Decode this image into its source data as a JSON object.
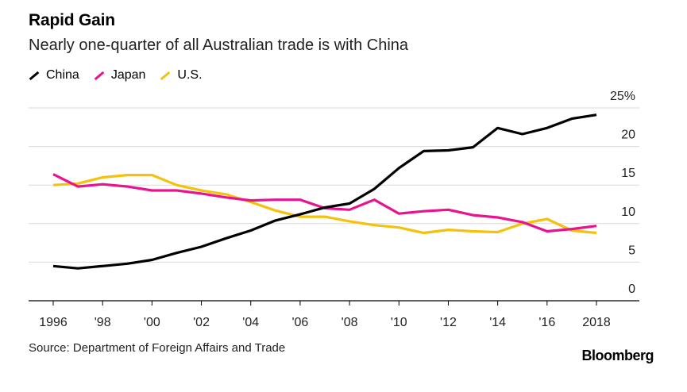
{
  "header": {
    "title": "Rapid Gain",
    "subtitle": "Nearly one-quarter of all Australian trade is with China"
  },
  "footer": {
    "source": "Source: Department of Foreign Affairs and Trade",
    "brand": "Bloomberg"
  },
  "chart_data": {
    "type": "line",
    "title": "Rapid Gain",
    "subtitle": "Nearly one-quarter of all Australian trade is with China",
    "x": [
      1996,
      1997,
      1998,
      1999,
      2000,
      2001,
      2002,
      2003,
      2004,
      2005,
      2006,
      2007,
      2008,
      2009,
      2010,
      2011,
      2012,
      2013,
      2014,
      2015,
      2016,
      2017,
      2018
    ],
    "x_tick_values": [
      1996,
      1998,
      2000,
      2002,
      2004,
      2006,
      2008,
      2010,
      2012,
      2014,
      2016,
      2018
    ],
    "x_tick_labels": [
      "1996",
      "'98",
      "'00",
      "'02",
      "'04",
      "'06",
      "'08",
      "'10",
      "'12",
      "'14",
      "'16",
      "2018"
    ],
    "y_tick_values": [
      0,
      5,
      10,
      15,
      20,
      25
    ],
    "y_tick_labels": [
      "0",
      "5",
      "10",
      "15",
      "20",
      "25%"
    ],
    "xlim": [
      1995,
      2020
    ],
    "ylim": [
      0,
      25
    ],
    "grid": "horizontal",
    "legend_position": "top-left",
    "series": [
      {
        "name": "China",
        "color": "#000000",
        "values": [
          4.5,
          4.2,
          4.5,
          4.8,
          5.3,
          6.2,
          7.0,
          8.1,
          9.1,
          10.4,
          11.2,
          12.1,
          12.6,
          14.5,
          17.2,
          19.4,
          19.5,
          19.9,
          22.4,
          21.6,
          22.4,
          23.6,
          24.1
        ]
      },
      {
        "name": "Japan",
        "color": "#e8138f",
        "values": [
          16.4,
          14.8,
          15.1,
          14.8,
          14.3,
          14.3,
          13.9,
          13.4,
          13.0,
          13.1,
          13.1,
          12.0,
          11.8,
          13.1,
          11.3,
          11.6,
          11.8,
          11.1,
          10.8,
          10.2,
          9.0,
          9.3,
          9.7
        ]
      },
      {
        "name": "U.S.",
        "color": "#f4c20d",
        "values": [
          15.0,
          15.2,
          16.0,
          16.3,
          16.3,
          15.0,
          14.3,
          13.8,
          12.8,
          11.7,
          10.9,
          10.9,
          10.3,
          9.8,
          9.5,
          8.8,
          9.2,
          9.0,
          8.9,
          10.0,
          10.6,
          9.1,
          8.8
        ]
      }
    ]
  }
}
